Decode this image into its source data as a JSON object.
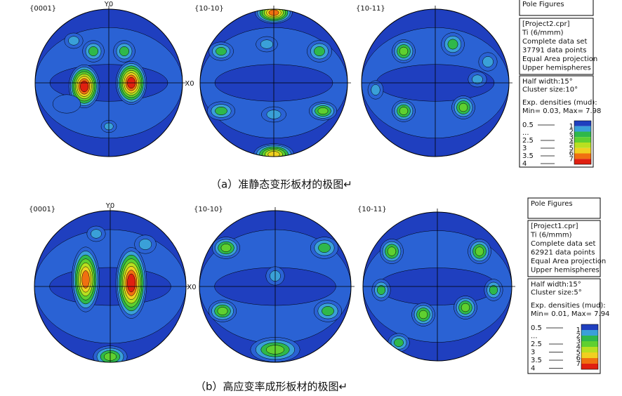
{
  "panels": [
    {
      "pole_figures": [
        {
          "label": "{0001}",
          "y_axis": "Y0",
          "x_axis": "X0"
        },
        {
          "label": "{10-10}"
        },
        {
          "label": "{10-11}"
        }
      ],
      "info": {
        "title": "Pole Figures",
        "project": [
          "[Project2.cpr]",
          "Ti (6/mmm)",
          "Complete data set",
          "37791 data points",
          "Equal Area projection",
          "Upper hemispheres"
        ],
        "settings": [
          "Half width:15°",
          "Cluster size:10°",
          "Exp. densities (mud):",
          "Min= 0.03, Max= 7.98"
        ]
      },
      "legend": {
        "levels": [
          "0.5",
          "...",
          "2.5",
          "3",
          "3.5",
          "4"
        ],
        "colorbar": [
          "1",
          "2",
          "3",
          "4",
          "5",
          "6",
          "7"
        ]
      },
      "caption": "（a）准静态变形板材的极图↵"
    },
    {
      "pole_figures": [
        {
          "label": "{0001}",
          "y_axis": "Y0",
          "x_axis": "X0"
        },
        {
          "label": "{10-10}"
        },
        {
          "label": "{10-11}"
        }
      ],
      "info": {
        "title": "Pole Figures",
        "project": [
          "[Project1.cpr]",
          "Ti (6/mmm)",
          "Complete data set",
          "62921 data points",
          "Equal Area projection",
          "Upper hemispheres"
        ],
        "settings": [
          "Half width:15°",
          "Cluster size:5°",
          "Exp. densities (mud):",
          "Min= 0.01, Max= 7.94"
        ]
      },
      "legend": {
        "levels": [
          "0.5",
          "...",
          "2.5",
          "3",
          "3.5",
          "4"
        ],
        "colorbar": [
          "1",
          "2",
          "3",
          "4",
          "5",
          "6",
          "7"
        ]
      },
      "caption": "（b）高应变率成形板材的极图↵"
    }
  ]
}
